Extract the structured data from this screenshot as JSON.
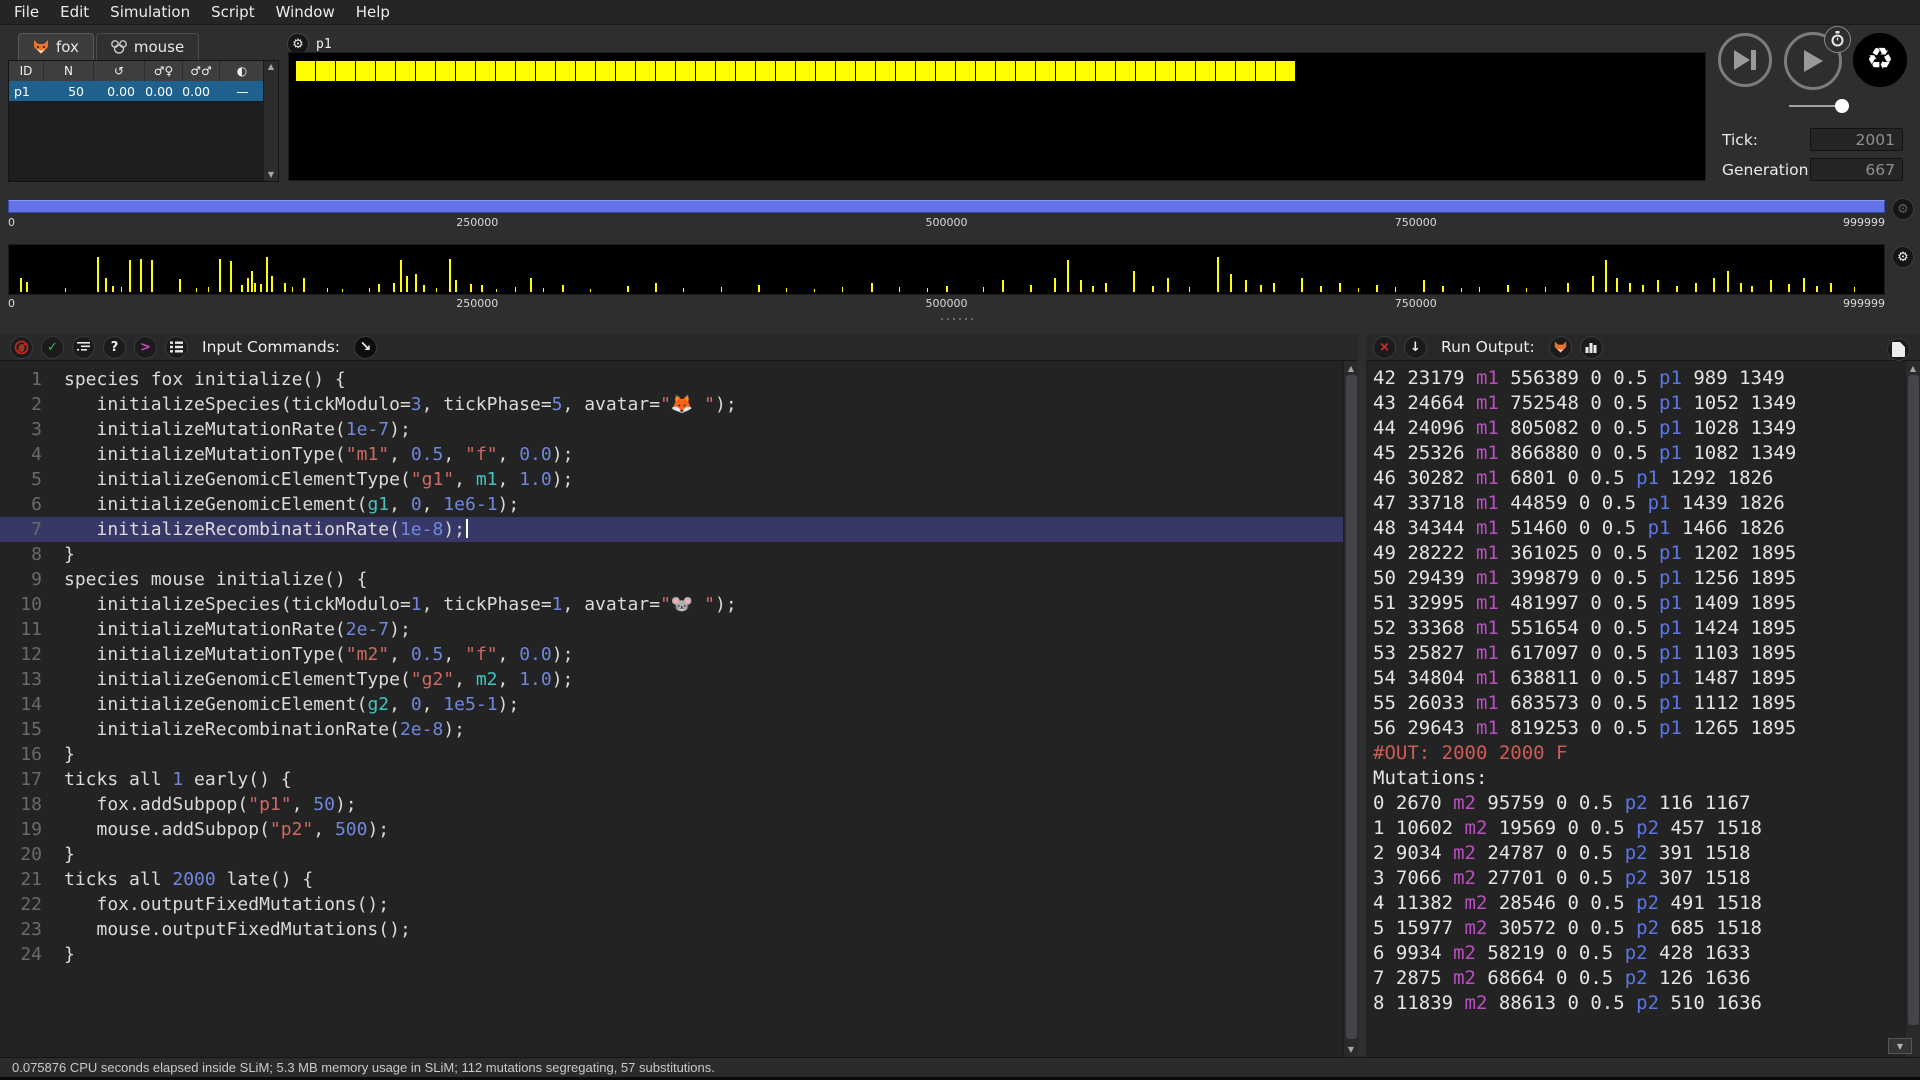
{
  "menu": {
    "items": [
      "File",
      "Edit",
      "Simulation",
      "Script",
      "Window",
      "Help"
    ]
  },
  "tabs": [
    {
      "label": "fox",
      "icon": "fox-avatar-icon",
      "active": true
    },
    {
      "label": "mouse",
      "icon": "mouse-avatar-icon",
      "active": false
    }
  ],
  "population_table": {
    "columns": [
      "ID",
      "N",
      "↺",
      "♂♀",
      "♂♂",
      "◐"
    ],
    "rows": [
      [
        "p1",
        "50",
        "0.00",
        "0.00",
        "0.00",
        "—"
      ]
    ]
  },
  "population_view": {
    "label": "p1",
    "individual_count": 50,
    "individual_color": "#ffff00"
  },
  "playback": {
    "tick_label": "Tick:",
    "tick_value": "2001",
    "generation_label": "Generation:",
    "generation_value": "667",
    "buttons": [
      "step-button",
      "play-button",
      "recycle-button"
    ],
    "speed_slider": true
  },
  "chromosome": {
    "ticks": [
      "0",
      "250000",
      "500000",
      "750000",
      "999999"
    ],
    "bar_color": "#6373e8",
    "mark_color": "#ffff00",
    "mutation_marks": [
      [
        0.006,
        0.3
      ],
      [
        0.009,
        0.22
      ],
      [
        0.03,
        0.08
      ],
      [
        0.047,
        0.75
      ],
      [
        0.051,
        0.3
      ],
      [
        0.055,
        0.12
      ],
      [
        0.06,
        0.1
      ],
      [
        0.064,
        0.7
      ],
      [
        0.07,
        0.72
      ],
      [
        0.076,
        0.7
      ],
      [
        0.091,
        0.28
      ],
      [
        0.1,
        0.08
      ],
      [
        0.106,
        0.1
      ],
      [
        0.112,
        0.72
      ],
      [
        0.118,
        0.68
      ],
      [
        0.124,
        0.15
      ],
      [
        0.127,
        0.3
      ],
      [
        0.129,
        0.45
      ],
      [
        0.131,
        0.2
      ],
      [
        0.134,
        0.18
      ],
      [
        0.137,
        0.75
      ],
      [
        0.14,
        0.35
      ],
      [
        0.147,
        0.2
      ],
      [
        0.151,
        0.1
      ],
      [
        0.157,
        0.3
      ],
      [
        0.17,
        0.08
      ],
      [
        0.178,
        0.06
      ],
      [
        0.192,
        0.08
      ],
      [
        0.197,
        0.18
      ],
      [
        0.205,
        0.2
      ],
      [
        0.209,
        0.7
      ],
      [
        0.212,
        0.35
      ],
      [
        0.217,
        0.4
      ],
      [
        0.221,
        0.15
      ],
      [
        0.228,
        0.08
      ],
      [
        0.235,
        0.72
      ],
      [
        0.238,
        0.25
      ],
      [
        0.246,
        0.18
      ],
      [
        0.252,
        0.15
      ],
      [
        0.26,
        0.06
      ],
      [
        0.27,
        0.1
      ],
      [
        0.278,
        0.3
      ],
      [
        0.285,
        0.08
      ],
      [
        0.295,
        0.15
      ],
      [
        0.31,
        0.06
      ],
      [
        0.33,
        0.12
      ],
      [
        0.345,
        0.2
      ],
      [
        0.36,
        0.08
      ],
      [
        0.38,
        0.1
      ],
      [
        0.4,
        0.15
      ],
      [
        0.415,
        0.08
      ],
      [
        0.43,
        0.06
      ],
      [
        0.445,
        0.1
      ],
      [
        0.46,
        0.2
      ],
      [
        0.475,
        0.1
      ],
      [
        0.49,
        0.08
      ],
      [
        0.5,
        0.12
      ],
      [
        0.52,
        0.1
      ],
      [
        0.53,
        0.25
      ],
      [
        0.545,
        0.15
      ],
      [
        0.558,
        0.3
      ],
      [
        0.565,
        0.7
      ],
      [
        0.572,
        0.25
      ],
      [
        0.578,
        0.12
      ],
      [
        0.585,
        0.2
      ],
      [
        0.6,
        0.45
      ],
      [
        0.61,
        0.12
      ],
      [
        0.618,
        0.3
      ],
      [
        0.63,
        0.1
      ],
      [
        0.645,
        0.75
      ],
      [
        0.652,
        0.4
      ],
      [
        0.66,
        0.25
      ],
      [
        0.668,
        0.15
      ],
      [
        0.675,
        0.2
      ],
      [
        0.69,
        0.3
      ],
      [
        0.7,
        0.12
      ],
      [
        0.71,
        0.2
      ],
      [
        0.72,
        0.08
      ],
      [
        0.73,
        0.15
      ],
      [
        0.74,
        0.1
      ],
      [
        0.755,
        0.25
      ],
      [
        0.765,
        0.12
      ],
      [
        0.775,
        0.08
      ],
      [
        0.785,
        0.1
      ],
      [
        0.8,
        0.15
      ],
      [
        0.81,
        0.08
      ],
      [
        0.82,
        0.1
      ],
      [
        0.832,
        0.2
      ],
      [
        0.845,
        0.35
      ],
      [
        0.852,
        0.7
      ],
      [
        0.858,
        0.3
      ],
      [
        0.865,
        0.2
      ],
      [
        0.872,
        0.15
      ],
      [
        0.88,
        0.25
      ],
      [
        0.89,
        0.12
      ],
      [
        0.9,
        0.2
      ],
      [
        0.91,
        0.3
      ],
      [
        0.917,
        0.45
      ],
      [
        0.924,
        0.2
      ],
      [
        0.93,
        0.12
      ],
      [
        0.94,
        0.25
      ],
      [
        0.95,
        0.18
      ],
      [
        0.958,
        0.3
      ],
      [
        0.965,
        0.12
      ],
      [
        0.972,
        0.2
      ],
      [
        0.985,
        0.1
      ]
    ]
  },
  "editor": {
    "title": "Input Commands:",
    "toolbar_icons": [
      "no-debug-icon",
      "check-script-icon",
      "prettyprint-icon",
      "help-icon",
      "console-icon",
      "script-blocks-icon",
      "execute-icon"
    ],
    "current_line": 7,
    "lines": [
      "species fox initialize() {",
      "   initializeSpecies(tickModulo=3, tickPhase=5, avatar=\"🦊 \");",
      "   initializeMutationRate(1e-7);",
      "   initializeMutationType(\"m1\", 0.5, \"f\", 0.0);",
      "   initializeGenomicElementType(\"g1\", m1, 1.0);",
      "   initializeGenomicElement(g1, 0, 1e6-1);",
      "   initializeRecombinationRate(1e-8);",
      "}",
      "species mouse initialize() {",
      "   initializeSpecies(tickModulo=1, tickPhase=1, avatar=\"🐭 \");",
      "   initializeMutationRate(2e-7);",
      "   initializeMutationType(\"m2\", 0.5, \"f\", 0.0);",
      "   initializeGenomicElementType(\"g2\", m2, 1.0);",
      "   initializeGenomicElement(g2, 0, 1e5-1);",
      "   initializeRecombinationRate(2e-8);",
      "}",
      "ticks all 1 early() {",
      "   fox.addSubpop(\"p1\", 50);",
      "   mouse.addSubpop(\"p2\", 500);",
      "}",
      "ticks all 2000 late() {",
      "   fox.outputFixedMutations();",
      "   mouse.outputFixedMutations();",
      "}"
    ]
  },
  "output": {
    "title": "Run Output:",
    "toolbar_icons": [
      "clear-output-icon",
      "scroll-to-bottom-icon",
      "species-fox-icon",
      "graphs-icon",
      "document-icon"
    ],
    "lines": [
      "42 23179 m1 556389 0 0.5 p1 989 1349",
      "43 24664 m1 752548 0 0.5 p1 1052 1349",
      "44 24096 m1 805082 0 0.5 p1 1028 1349",
      "45 25326 m1 866880 0 0.5 p1 1082 1349",
      "46 30282 m1 6801 0 0.5 p1 1292 1826",
      "47 33718 m1 44859 0 0.5 p1 1439 1826",
      "48 34344 m1 51460 0 0.5 p1 1466 1826",
      "49 28222 m1 361025 0 0.5 p1 1202 1895",
      "50 29439 m1 399879 0 0.5 p1 1256 1895",
      "51 32995 m1 481997 0 0.5 p1 1409 1895",
      "52 33368 m1 551654 0 0.5 p1 1424 1895",
      "53 25827 m1 617097 0 0.5 p1 1103 1895",
      "54 34804 m1 638811 0 0.5 p1 1487 1895",
      "55 26033 m1 683573 0 0.5 p1 1112 1895",
      "56 29643 m1 819253 0 0.5 p1 1265 1895",
      "#OUT: 2000 2000 F",
      "Mutations:",
      "0 2670 m2 95759 0 0.5 p2 116 1167",
      "1 10602 m2 19569 0 0.5 p2 457 1518",
      "2 9034 m2 24787 0 0.5 p2 391 1518",
      "3 7066 m2 27701 0 0.5 p2 307 1518",
      "4 11382 m2 28546 0 0.5 p2 491 1518",
      "5 15977 m2 30572 0 0.5 p2 685 1518",
      "6 9934 m2 58219 0 0.5 p2 428 1633",
      "7 2875 m2 68664 0 0.5 p2 126 1636",
      "8 11839 m2 88613 0 0.5 p2 510 1636"
    ]
  },
  "status_bar": {
    "text": "0.075876 CPU seconds elapsed inside SLiM; 5.3 MB memory usage in SLiM; 112 mutations segregating, 57 substitutions."
  },
  "colors": {
    "accent_blue_bar": "#6373e8",
    "individual_yellow": "#ffff00",
    "selected_row": "#1f618e",
    "current_line": "#383868",
    "syntax_string": "#cd6a62",
    "syntax_number": "#6f87dd",
    "syntax_identifier": "#44c2c4",
    "output_mutation": "#b94fc1",
    "output_subpop": "#5a77ea",
    "output_directive": "#cd5c54"
  }
}
